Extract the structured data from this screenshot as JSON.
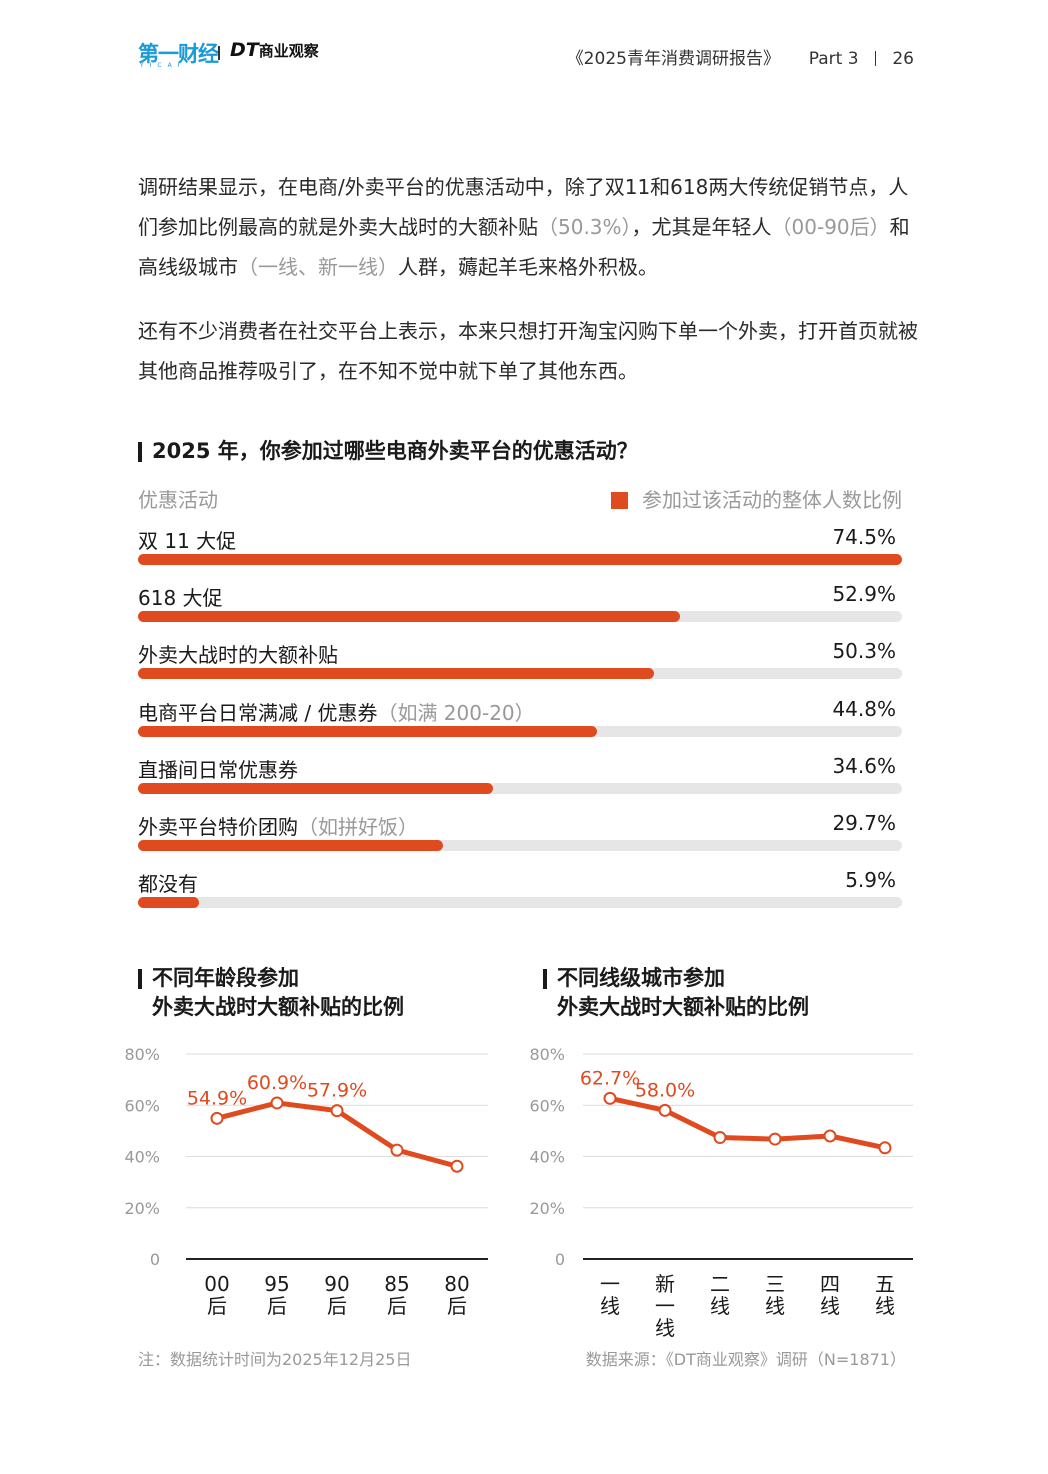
{
  "header": {
    "logo1": "第一财经",
    "logo1_sub": "YICAI",
    "logo2_main": "DT",
    "logo2_sub": "商业观察",
    "report": "《2025青年消费调研报告》",
    "part": "Part 3",
    "page": "26"
  },
  "paragraph1": {
    "t1": "调研结果显示，在电商/外卖平台的优惠活动中，除了双11和618两大传统促销节点，人们参加比例最高的就是外卖大战时的大额补贴",
    "t2": "（50.3%）",
    "t3": "，尤其是年轻人",
    "t4": "（00-90后）",
    "t5": "和高线级城市",
    "t6": "（一线、新一线）",
    "t7": "人群，薅起羊毛来格外积极。"
  },
  "paragraph2": "还有不少消费者在社交平台上表示，本来只想打开淘宝闪购下单一个外卖，打开首页就被其他商品推荐吸引了，在不知不觉中就下单了其他东西。",
  "chart_data": [
    {
      "type": "bar",
      "orientation": "horizontal",
      "title": "2025 年，你参加过哪些电商外卖平台的优惠活动？",
      "category_header": "优惠活动",
      "series_name": "参加过该活动的整体人数比例",
      "color": "#e04a1f",
      "categories": [
        {
          "label": "双 11 大促",
          "note": ""
        },
        {
          "label": "618 大促",
          "note": ""
        },
        {
          "label": "外卖大战时的大额补贴",
          "note": ""
        },
        {
          "label": "电商平台日常满减 / 优惠券",
          "note": "（如满 200-20）"
        },
        {
          "label": "直播间日常优惠券",
          "note": ""
        },
        {
          "label": "外卖平台特价团购",
          "note": "（如拼好饭）"
        },
        {
          "label": "都没有",
          "note": ""
        }
      ],
      "values": [
        74.5,
        52.9,
        50.3,
        44.8,
        34.6,
        29.7,
        5.9
      ],
      "value_labels": [
        "74.5%",
        "52.9%",
        "50.3%",
        "44.8%",
        "34.6%",
        "29.7%",
        "5.9%"
      ],
      "xlim": [
        0,
        74.5
      ]
    },
    {
      "type": "line",
      "title_line1": "不同年龄段参加",
      "title_line2": "外卖大战时大额补贴的比例",
      "categories": [
        [
          "00",
          "后"
        ],
        [
          "95",
          "后"
        ],
        [
          "90",
          "后"
        ],
        [
          "85",
          "后"
        ],
        [
          "80",
          "后"
        ]
      ],
      "values": [
        54.9,
        60.9,
        57.9,
        42.5,
        36.2
      ],
      "labels": [
        "54.9%",
        "60.9%",
        "57.9%",
        "",
        ""
      ],
      "ylim": [
        0,
        80
      ],
      "yticks": [
        "0",
        "20%",
        "40%",
        "60%",
        "80%"
      ],
      "grid": true,
      "color": "#e04a1f"
    },
    {
      "type": "line",
      "title_line1": "不同线级城市参加",
      "title_line2": "外卖大战时大额补贴的比例",
      "categories": [
        [
          "一",
          "线"
        ],
        [
          "新",
          "一",
          "线"
        ],
        [
          "二",
          "线"
        ],
        [
          "三",
          "线"
        ],
        [
          "四",
          "线"
        ],
        [
          "五",
          "线"
        ]
      ],
      "values": [
        62.7,
        58.0,
        47.4,
        46.8,
        48.0,
        43.4
      ],
      "labels": [
        "62.7%",
        "58.0%",
        "",
        "",
        "",
        ""
      ],
      "ylim": [
        0,
        80
      ],
      "yticks": [
        "0",
        "20%",
        "40%",
        "60%",
        "80%"
      ],
      "grid": true,
      "color": "#e04a1f"
    }
  ],
  "footnote_left": "注：数据统计时间为2025年12月25日",
  "footnote_right": "数据来源：《DT商业观察》调研（N=1871）"
}
